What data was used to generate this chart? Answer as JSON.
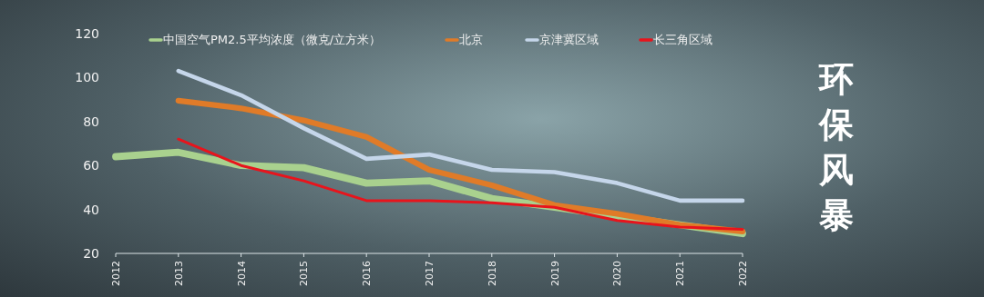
{
  "chart_data": {
    "type": "line",
    "title": "环保风暴",
    "x": [
      2012,
      2013,
      2014,
      2015,
      2016,
      2017,
      2018,
      2019,
      2020,
      2021,
      2022
    ],
    "series": [
      {
        "name": "中国空气PM2.5平均浓度（微克/立方米）",
        "color": "#a9d18e",
        "values": [
          64,
          66,
          60,
          59,
          52,
          53,
          45,
          41,
          37,
          33,
          29
        ]
      },
      {
        "name": "北京",
        "color": "#e07b28",
        "values": [
          null,
          89.5,
          86,
          80.5,
          73,
          58,
          51,
          42,
          38,
          33,
          30
        ]
      },
      {
        "name": "京津冀区域",
        "color": "#c5d6ea",
        "values": [
          null,
          103,
          92,
          77,
          63,
          65,
          58,
          57,
          52,
          44,
          44
        ]
      },
      {
        "name": "长三角区域",
        "color": "#e8141c",
        "values": [
          null,
          72,
          60,
          53,
          44,
          44,
          43,
          41,
          35,
          32,
          31
        ]
      }
    ],
    "xlim": [
      2012,
      2022
    ],
    "xticks": [
      2012,
      2013,
      2014,
      2015,
      2016,
      2017,
      2018,
      2019,
      2020,
      2021,
      2022
    ],
    "ylim": [
      20,
      120
    ],
    "yticks": [
      20,
      40,
      60,
      80,
      100,
      120
    ],
    "legend": "top",
    "grid": false,
    "marker": "none",
    "line_style": "solid"
  }
}
